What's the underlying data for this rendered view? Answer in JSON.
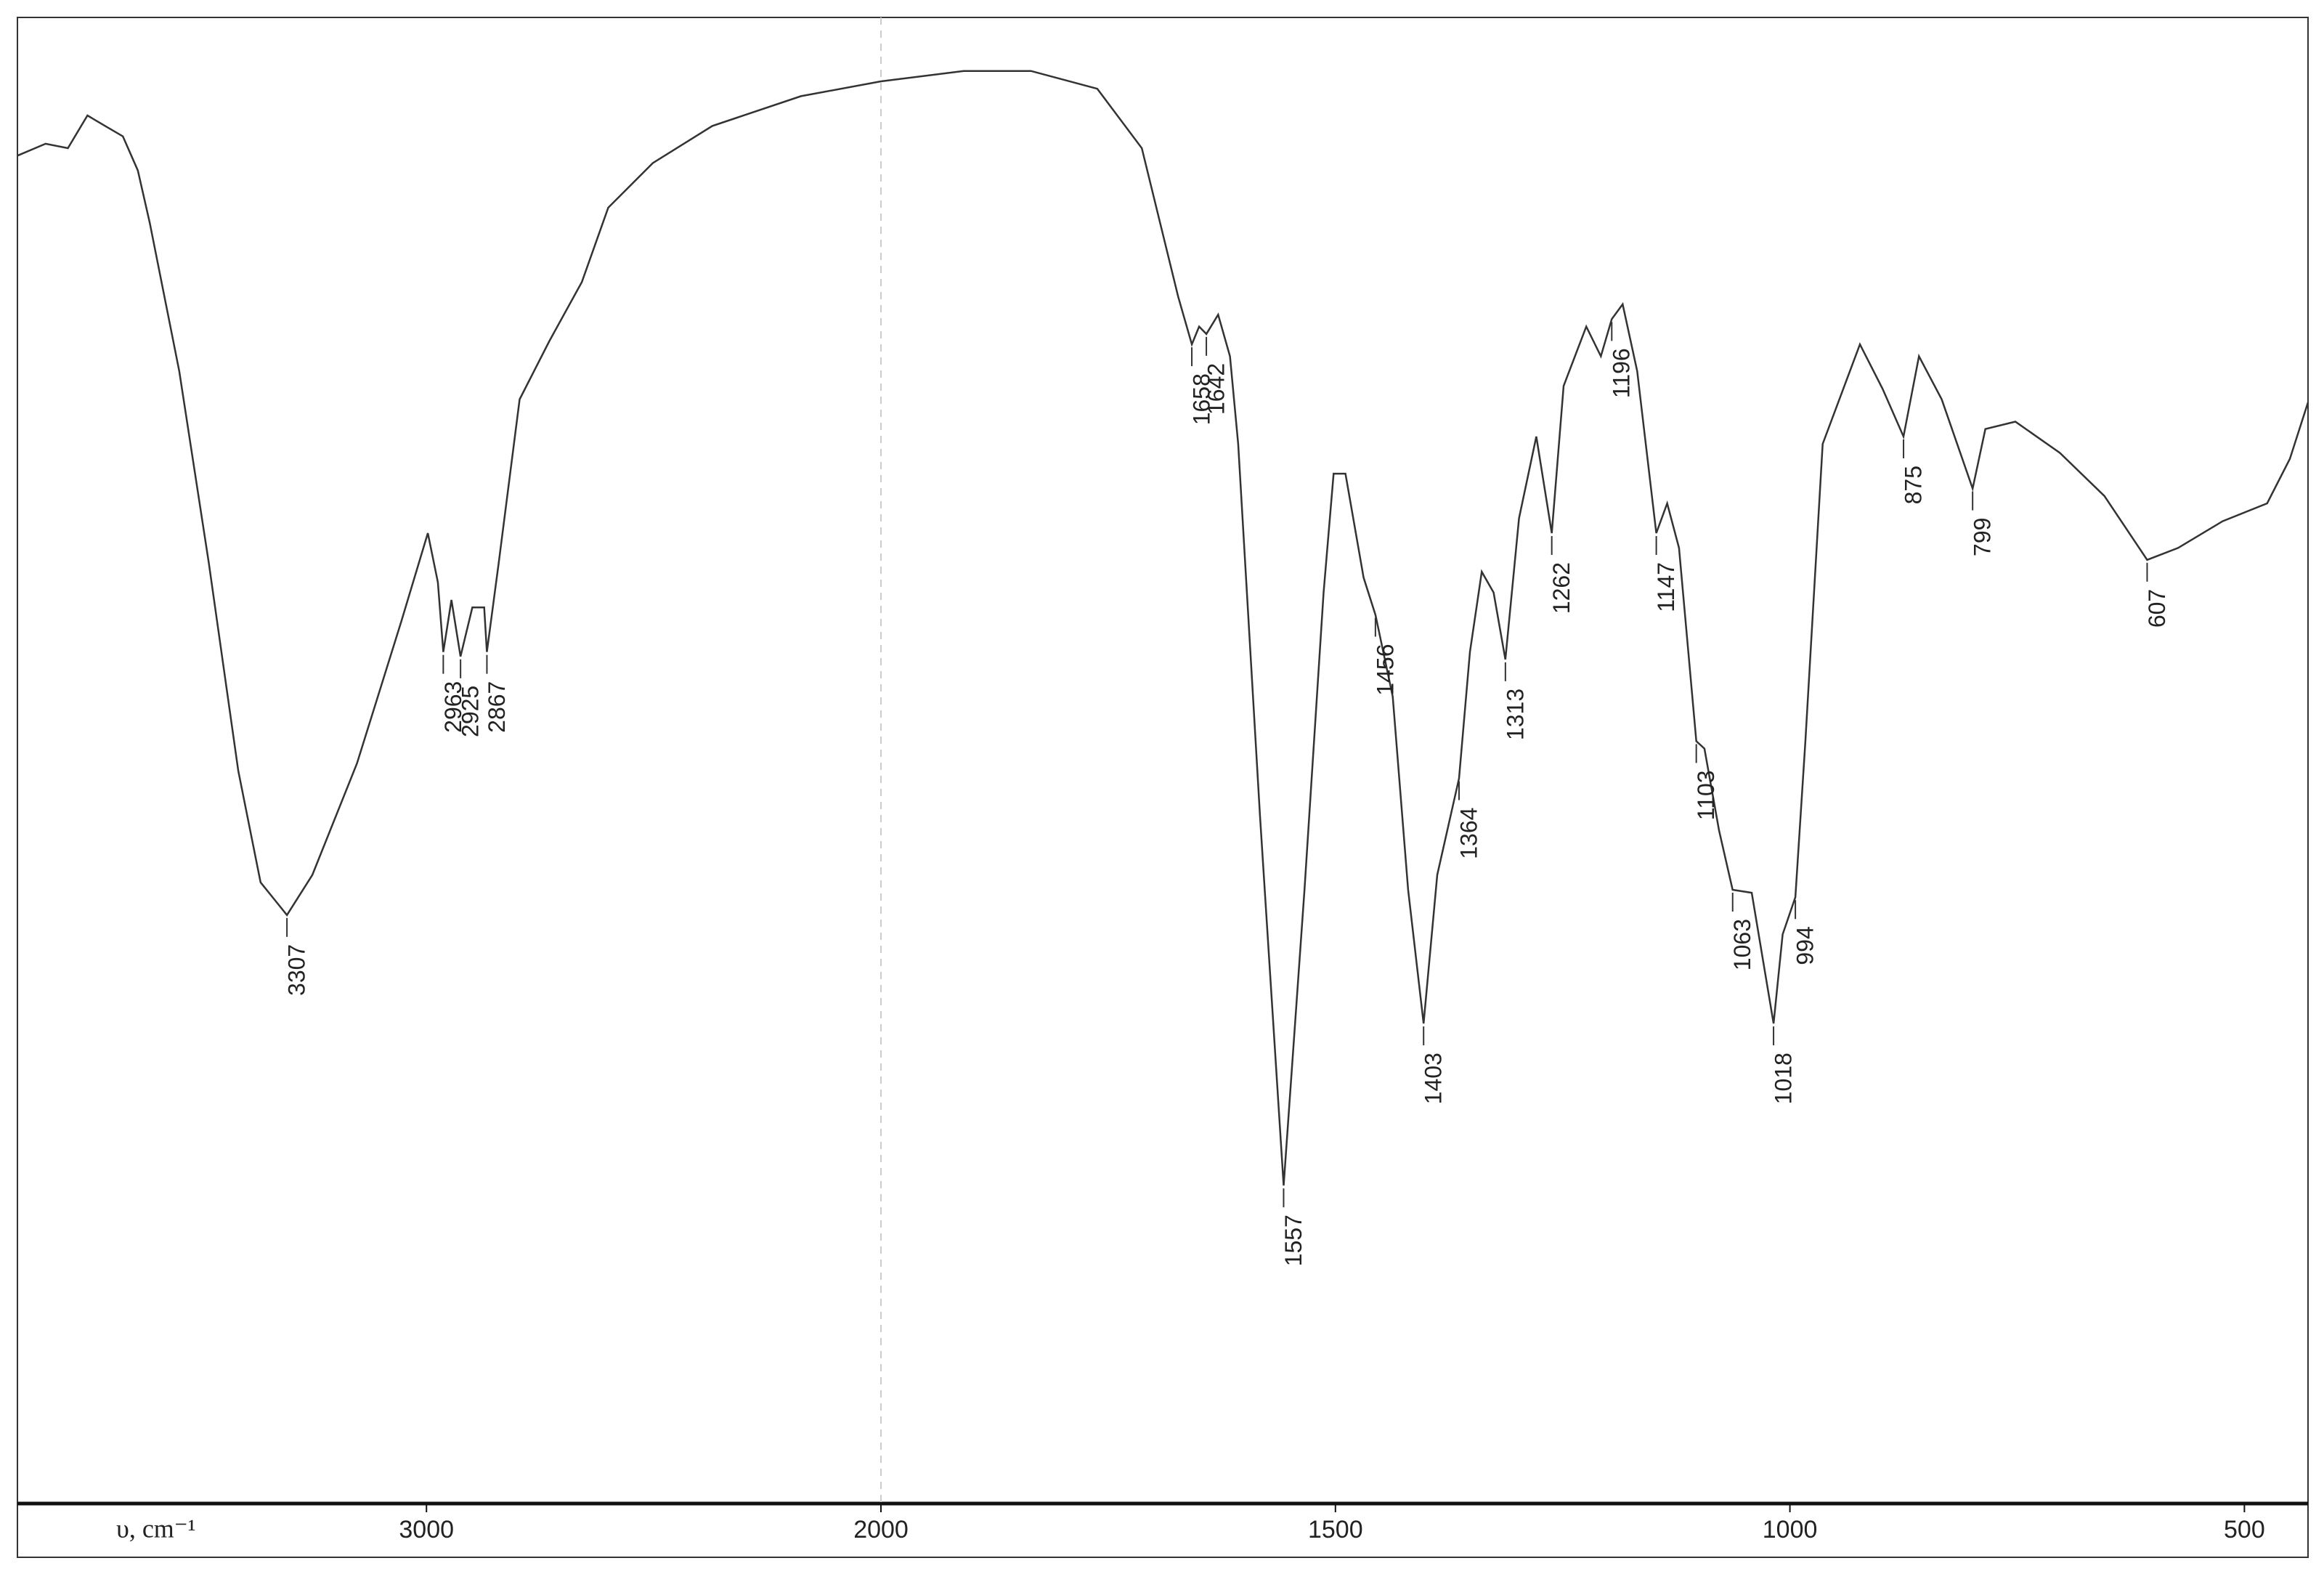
{
  "chart_data": {
    "type": "line",
    "x_label": "υ, cm⁻¹",
    "xlim": [
      3900,
      430
    ],
    "xticks": [
      3000,
      2000,
      1500,
      1000,
      500
    ],
    "xbreak": 2000,
    "xbreak_zoom": 2,
    "ylim": [
      0,
      100
    ],
    "series": [
      {
        "color": "#333333",
        "x": [
          3900,
          3838,
          3789,
          3746,
          3707,
          3668,
          3635,
          3609,
          3544,
          3479,
          3414,
          3365,
          3307,
          3251,
          3153,
          3056,
          2997,
          2975,
          2963,
          2945,
          2925,
          2899,
          2873,
          2867,
          2841,
          2795,
          2730,
          2658,
          2600,
          2502,
          2371,
          2176,
          2000,
          1909,
          1835,
          1762,
          1713,
          1673,
          1658,
          1650,
          1642,
          1629,
          1616,
          1607,
          1583,
          1557,
          1534,
          1513,
          1502,
          1489,
          1469,
          1456,
          1437,
          1420,
          1403,
          1388,
          1364,
          1352,
          1339,
          1326,
          1313,
          1298,
          1279,
          1262,
          1249,
          1224,
          1208,
          1196,
          1184,
          1168,
          1147,
          1135,
          1122,
          1103,
          1094,
          1078,
          1063,
          1042,
          1018,
          1008,
          994,
          983,
          964,
          923,
          898,
          875,
          858,
          833,
          799,
          785,
          752,
          703,
          654,
          607,
          573,
          524,
          475,
          450,
          430
        ],
        "values": [
          90.7,
          91.5,
          91.2,
          93.4,
          92.7,
          92.0,
          89.7,
          86.2,
          76.2,
          63.3,
          49.3,
          41.8,
          39.6,
          42.3,
          49.8,
          59.3,
          65.3,
          62.0,
          57.3,
          60.8,
          57.0,
          60.3,
          60.3,
          57.3,
          63.3,
          74.3,
          78.2,
          82.2,
          87.2,
          90.2,
          92.7,
          94.7,
          95.7,
          96.4,
          96.4,
          95.2,
          91.2,
          81.2,
          78.0,
          79.2,
          78.7,
          80.0,
          77.2,
          71.3,
          46.3,
          21.4,
          41.3,
          61.3,
          69.3,
          69.3,
          62.3,
          59.8,
          54.3,
          41.3,
          32.3,
          42.3,
          48.8,
          57.3,
          62.7,
          61.3,
          56.8,
          66.3,
          71.8,
          65.3,
          75.2,
          79.2,
          77.2,
          79.7,
          80.7,
          76.2,
          65.3,
          67.3,
          64.3,
          51.3,
          50.8,
          45.3,
          41.3,
          41.1,
          32.3,
          38.3,
          40.8,
          51.3,
          71.3,
          78.0,
          75.0,
          71.8,
          77.2,
          74.3,
          68.3,
          72.3,
          72.8,
          70.7,
          67.8,
          63.5,
          64.3,
          66.1,
          67.3,
          70.3,
          74.1
        ]
      }
    ],
    "peaks": [
      3307,
      2963,
      2925,
      2867,
      1658,
      1642,
      1557,
      1456,
      1403,
      1364,
      1313,
      1262,
      1196,
      1147,
      1103,
      1063,
      1018,
      994,
      875,
      799,
      607
    ]
  }
}
